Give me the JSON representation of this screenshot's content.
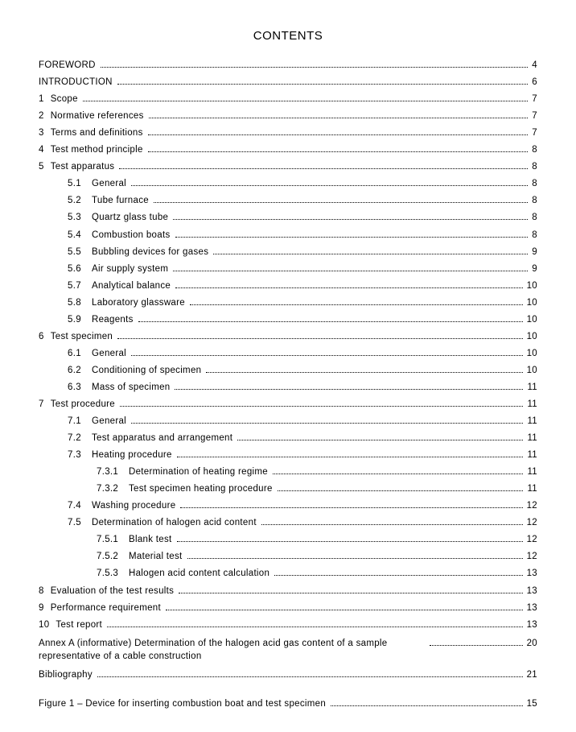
{
  "title": "CONTENTS",
  "entries": [
    {
      "level": 0,
      "num": "",
      "label": "FOREWORD",
      "page": "4"
    },
    {
      "level": 0,
      "num": "",
      "label": "INTRODUCTION",
      "page": "6"
    },
    {
      "level": 0,
      "num": "1",
      "label": "Scope",
      "page": "7"
    },
    {
      "level": 0,
      "num": "2",
      "label": "Normative references",
      "page": "7"
    },
    {
      "level": 0,
      "num": "3",
      "label": "Terms and definitions",
      "page": "7"
    },
    {
      "level": 0,
      "num": "4",
      "label": "Test method principle",
      "page": "8"
    },
    {
      "level": 0,
      "num": "5",
      "label": "Test apparatus",
      "page": "8"
    },
    {
      "level": 1,
      "num": "5.1",
      "label": "General",
      "page": "8"
    },
    {
      "level": 1,
      "num": "5.2",
      "label": "Tube furnace",
      "page": "8"
    },
    {
      "level": 1,
      "num": "5.3",
      "label": "Quartz glass tube",
      "page": "8"
    },
    {
      "level": 1,
      "num": "5.4",
      "label": "Combustion boats",
      "page": "8"
    },
    {
      "level": 1,
      "num": "5.5",
      "label": "Bubbling devices for gases",
      "page": "9"
    },
    {
      "level": 1,
      "num": "5.6",
      "label": "Air supply system",
      "page": "9"
    },
    {
      "level": 1,
      "num": "5.7",
      "label": "Analytical balance",
      "page": "10"
    },
    {
      "level": 1,
      "num": "5.8",
      "label": "Laboratory glassware",
      "page": "10"
    },
    {
      "level": 1,
      "num": "5.9",
      "label": "Reagents",
      "page": "10"
    },
    {
      "level": 0,
      "num": "6",
      "label": "Test specimen",
      "page": "10"
    },
    {
      "level": 1,
      "num": "6.1",
      "label": "General",
      "page": "10"
    },
    {
      "level": 1,
      "num": "6.2",
      "label": "Conditioning of specimen",
      "page": "10"
    },
    {
      "level": 1,
      "num": "6.3",
      "label": "Mass of specimen",
      "page": "11"
    },
    {
      "level": 0,
      "num": "7",
      "label": "Test procedure",
      "page": "11"
    },
    {
      "level": 1,
      "num": "7.1",
      "label": "General",
      "page": "11"
    },
    {
      "level": 1,
      "num": "7.2",
      "label": "Test apparatus and arrangement",
      "page": "11"
    },
    {
      "level": 1,
      "num": "7.3",
      "label": "Heating procedure",
      "page": "11"
    },
    {
      "level": 2,
      "num": "7.3.1",
      "label": "Determination of heating regime",
      "page": "11"
    },
    {
      "level": 2,
      "num": "7.3.2",
      "label": "Test specimen heating procedure",
      "page": "11"
    },
    {
      "level": 1,
      "num": "7.4",
      "label": "Washing procedure",
      "page": "12"
    },
    {
      "level": 1,
      "num": "7.5",
      "label": "Determination of halogen acid content",
      "page": "12"
    },
    {
      "level": 2,
      "num": "7.5.1",
      "label": "Blank test",
      "page": "12"
    },
    {
      "level": 2,
      "num": "7.5.2",
      "label": "Material test",
      "page": "12"
    },
    {
      "level": 2,
      "num": "7.5.3",
      "label": "Halogen acid content calculation",
      "page": "13"
    },
    {
      "level": 0,
      "num": "8",
      "label": "Evaluation of the test results",
      "page": "13"
    },
    {
      "level": 0,
      "num": "9",
      "label": "Performance requirement",
      "page": "13"
    },
    {
      "level": 0,
      "num": "10",
      "label": "Test report",
      "page": "13"
    },
    {
      "level": 0,
      "num": "",
      "label": "Annex A (informative)  Determination of the halogen acid gas content of a sample representative of a cable construction",
      "page": "20",
      "wrap": true
    },
    {
      "level": 0,
      "num": "",
      "label": "Bibliography",
      "page": "21"
    }
  ],
  "figures": [
    {
      "label": "Figure 1 – Device for inserting combustion boat and test specimen",
      "page": "15"
    }
  ]
}
